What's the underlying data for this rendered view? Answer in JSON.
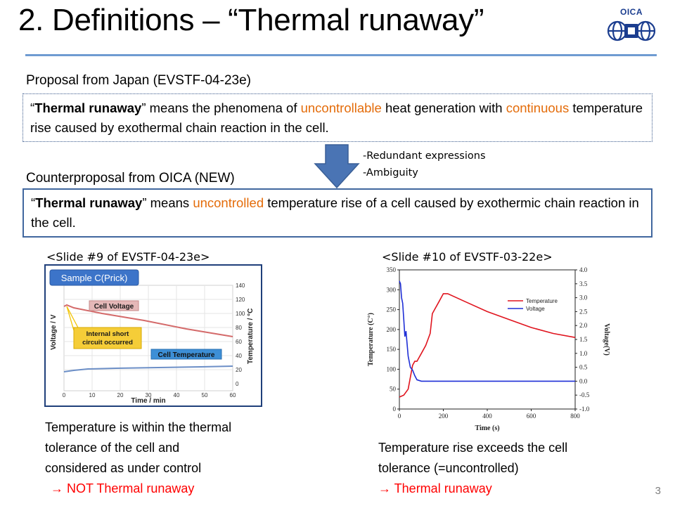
{
  "title": "2. Definitions – “Thermal runaway”",
  "logo": {
    "text": "OICA",
    "icon": "oica-globe-logo"
  },
  "proposal": {
    "label": "Proposal from Japan (EVSTF-04-23e)",
    "open_quote": "“",
    "term": "Thermal runaway",
    "text1": "” means the phenomena of ",
    "hl1": "uncontrollable",
    "text2": " heat generation with ",
    "hl2": "continuous",
    "text3": " temperature rise caused by exothermal chain reaction in the cell."
  },
  "arrow": {
    "icon": "down-arrow-icon",
    "color": "#4a74b4"
  },
  "notes": [
    "-Redundant expressions",
    "-Ambiguity"
  ],
  "counter": {
    "label": "Counterproposal from OICA (NEW)",
    "open_quote": "“",
    "term": "Thermal runaway",
    "text1": "” means ",
    "hl1": "uncontrolled",
    "text2": " temperature rise of a cell caused by exothermic chain reaction in the cell."
  },
  "slide_left": {
    "label": "<Slide #9 of EVSTF-04-23e>",
    "figure": {
      "badge": "Sample C(Prick)",
      "cell_voltage_label": "Cell Voltage",
      "short_label_1": "Internal short",
      "short_label_2": "circuit occurred",
      "cell_temp_label": "Cell Temperature",
      "ylabel_left": "Voltage / V",
      "ylabel_right": "Temperature / °C",
      "xlabel": "Time / min",
      "x_ticks": [
        "0",
        "10",
        "20",
        "30",
        "40",
        "50",
        "60"
      ],
      "right_ticks": [
        "140",
        "120",
        "100",
        "80",
        "60",
        "40",
        "20",
        "0"
      ]
    },
    "caption": [
      "Temperature is within the thermal",
      "tolerance of the cell and",
      "considered as under control",
      "→ NOT Thermal runaway"
    ]
  },
  "slide_right": {
    "label": "<Slide #10 of EVSTF-03-22e>",
    "caption": [
      "Temperature rise exceeds the cell",
      "tolerance (=uncontrolled)",
      "→ Thermal runaway"
    ]
  },
  "chart_data": {
    "type": "line",
    "xlabel": "Time (s)",
    "ylabel": "Temperature (C°)",
    "y2label": "Voltage(V)",
    "xlim": [
      0,
      800
    ],
    "ylim": [
      0,
      350
    ],
    "y2lim": [
      -1.0,
      4.0
    ],
    "x_ticks": [
      0,
      200,
      400,
      600,
      800
    ],
    "y_ticks": [
      0,
      50,
      100,
      150,
      200,
      250,
      300,
      350
    ],
    "y2_ticks": [
      "4.0",
      "3.5",
      "3.0",
      "2.5",
      "2.0",
      "1.5",
      "1.0",
      "0.5",
      "0.0",
      "-0.5",
      "-1.0"
    ],
    "legend_position": "top-right",
    "series": [
      {
        "name": "Temperature",
        "color": "#e0141e",
        "axis": "left",
        "x": [
          0,
          20,
          40,
          60,
          70,
          80,
          100,
          120,
          140,
          150,
          160,
          180,
          200,
          220,
          300,
          400,
          500,
          600,
          700,
          800
        ],
        "y": [
          30,
          35,
          50,
          110,
          120,
          120,
          140,
          160,
          190,
          240,
          250,
          270,
          290,
          290,
          270,
          245,
          225,
          205,
          190,
          180
        ]
      },
      {
        "name": "Voltage",
        "color": "#1f2fd6",
        "axis": "right",
        "x": [
          0,
          5,
          10,
          15,
          20,
          25,
          30,
          40,
          50,
          60,
          70,
          80,
          100,
          150,
          800
        ],
        "y": [
          3.6,
          3.5,
          3.0,
          2.8,
          2.2,
          1.6,
          1.8,
          0.9,
          0.5,
          0.4,
          0.2,
          0.05,
          0.0,
          0.0,
          0.0
        ]
      }
    ]
  },
  "page_number": "3"
}
